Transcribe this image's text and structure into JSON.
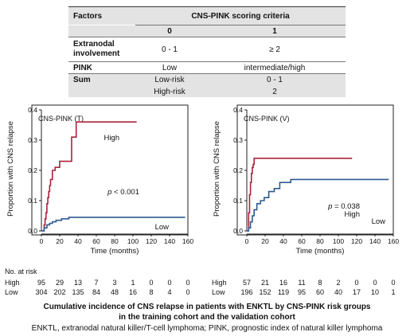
{
  "criteria_table": {
    "header": {
      "factors": "Factors",
      "criteria": "CNS-PINK scoring criteria",
      "score0": "0",
      "score1": "1"
    },
    "rows": [
      {
        "factor_line1": "Extranodal",
        "factor_line2": "involvement",
        "score0": "0 - 1",
        "score1": "≥ 2"
      },
      {
        "factor": "PINK",
        "score0": "Low",
        "score1": "intermediate/high"
      },
      {
        "factor": "Sum",
        "group_low": "Low-risk",
        "value_low": "0 - 1",
        "group_high": "High-risk",
        "value_high": "2"
      }
    ]
  },
  "chart_data": [
    {
      "type": "line",
      "title": "CNS-PINK (T)",
      "xlabel": "Time (months)",
      "ylabel": "Proportion with CNS relapse",
      "xlim": [
        0,
        160
      ],
      "ylim": [
        0,
        0.4
      ],
      "xticks": [
        "0",
        "20",
        "40",
        "60",
        "80",
        "100",
        "120",
        "140",
        "160"
      ],
      "yticks": [
        "0.0",
        "0.1",
        "0.2",
        "0.3",
        "0.4"
      ],
      "pvalue": "p < 0.001",
      "series": [
        {
          "name": "High",
          "color": "#a8243e",
          "x": [
            0,
            3,
            4,
            5,
            6,
            7,
            8,
            9,
            10,
            12,
            15,
            20,
            27,
            33,
            38,
            104
          ],
          "y": [
            0,
            0.02,
            0.04,
            0.06,
            0.09,
            0.11,
            0.13,
            0.15,
            0.17,
            0.2,
            0.21,
            0.23,
            0.23,
            0.31,
            0.36,
            0.36
          ]
        },
        {
          "name": "Low",
          "color": "#2f5a8e",
          "x": [
            0,
            3,
            6,
            9,
            12,
            16,
            22,
            30,
            157
          ],
          "y": [
            0,
            0.01,
            0.02,
            0.025,
            0.03,
            0.035,
            0.04,
            0.045,
            0.045
          ]
        }
      ],
      "risk_table": {
        "title": "No. at risk",
        "times": [
          0,
          20,
          40,
          60,
          80,
          100,
          120,
          140,
          160
        ],
        "rows": [
          {
            "label": "High",
            "values": [
              "95",
              "29",
              "13",
              "7",
              "3",
              "1",
              "0",
              "0",
              "0"
            ]
          },
          {
            "label": "Low",
            "values": [
              "304",
              "202",
              "135",
              "84",
              "48",
              "16",
              "8",
              "4",
              "0"
            ]
          }
        ]
      }
    },
    {
      "type": "line",
      "title": "CNS-PINK (V)",
      "xlabel": "Time (months)",
      "ylabel": "Proportion with CNS relapse",
      "xlim": [
        0,
        160
      ],
      "ylim": [
        0,
        0.4
      ],
      "xticks": [
        "0",
        "20",
        "40",
        "60",
        "80",
        "100",
        "120",
        "140",
        "160"
      ],
      "yticks": [
        "0.0",
        "0.1",
        "0.2",
        "0.3",
        "0.4"
      ],
      "pvalue": "p = 0.038",
      "series": [
        {
          "name": "High",
          "color": "#a8243e",
          "x": [
            0,
            2,
            3,
            4,
            5,
            6,
            7,
            8,
            115
          ],
          "y": [
            0,
            0.06,
            0.12,
            0.16,
            0.19,
            0.21,
            0.22,
            0.24,
            0.24
          ]
        },
        {
          "name": "Low",
          "color": "#2f5a8e",
          "x": [
            0,
            2,
            4,
            6,
            8,
            11,
            15,
            19,
            24,
            30,
            36,
            48,
            155
          ],
          "y": [
            0,
            0.01,
            0.03,
            0.05,
            0.07,
            0.09,
            0.1,
            0.11,
            0.13,
            0.14,
            0.16,
            0.17,
            0.17
          ]
        }
      ],
      "risk_table": {
        "title": "",
        "times": [
          0,
          20,
          40,
          60,
          80,
          100,
          120,
          140,
          160
        ],
        "rows": [
          {
            "label": "High",
            "values": [
              "57",
              "21",
              "16",
              "11",
              "8",
              "2",
              "0",
              "0",
              "0"
            ]
          },
          {
            "label": "Low",
            "values": [
              "196",
              "152",
              "119",
              "95",
              "60",
              "40",
              "17",
              "10",
              "1"
            ]
          }
        ]
      }
    }
  ],
  "caption": {
    "line1": "Cumulative incidence of CNS relapse in patients with ENKTL by CNS-PINK risk groups",
    "line2": "in the training cohort and the validation cohort",
    "line3": "ENKTL, extranodal natural killer/T-cell lymphoma; PINK, prognostic index of natural killer lymphoma"
  }
}
